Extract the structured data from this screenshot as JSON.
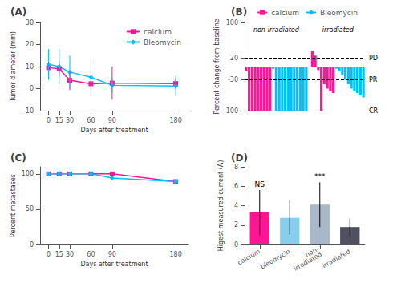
{
  "chart_data": [
    {
      "type": "line",
      "title": "(A)",
      "xlabel": "Days after treatment",
      "ylabel": "Tumor diameter (mm)",
      "x": [
        0,
        15,
        30,
        60,
        90,
        180
      ],
      "xlim": [
        -12,
        198
      ],
      "xticks": [
        0,
        15,
        30,
        60,
        90,
        180
      ],
      "ylim": [
        -10,
        30
      ],
      "yticks": [
        -10,
        0,
        10,
        20,
        30
      ],
      "legend": "upper right",
      "grid": false,
      "series": [
        {
          "name": "calcium",
          "color": "#FF1493",
          "marker": "square",
          "values": [
            9.5,
            9.0,
            3.8,
            2.2,
            2.5,
            2.3
          ],
          "errors": [
            2.5,
            3.5,
            4.5,
            2.5,
            7.5,
            2.5
          ]
        },
        {
          "name": "Bleomycin",
          "color": "#00BFFF",
          "marker": "diamond",
          "values": [
            11.0,
            10.0,
            7.5,
            5.2,
            1.5,
            1.2
          ],
          "errors": [
            7.0,
            8.0,
            7.5,
            7.5,
            3.5,
            4.5
          ]
        }
      ]
    },
    {
      "type": "bar",
      "title": "(B)",
      "ylabel": "Percent change from baseline",
      "ylim": [
        -100,
        100
      ],
      "yticks": [
        -100,
        -30,
        20,
        100
      ],
      "tick_labels": "y",
      "legend": "upper right",
      "grid": false,
      "groups": [
        {
          "label": "non-irradiated",
          "series": [
            {
              "name": "calcium",
              "color": "#FF1493",
              "values": [
                -10,
                -100,
                -100,
                -100,
                -100,
                -100,
                -100,
                -100,
                -100
              ]
            },
            {
              "name": "Bleomycin",
              "color": "#00BFFF",
              "values": [
                -5,
                -100,
                -100,
                -100,
                -100,
                -100,
                -100,
                -100,
                -100,
                -100,
                -100,
                -100
              ]
            }
          ]
        },
        {
          "label": "irradiated",
          "series": [
            {
              "name": "calcium",
              "color": "#FF1493",
              "values": [
                35,
                25,
                -8,
                -100,
                -40,
                -50,
                -55,
                -60
              ]
            },
            {
              "name": "Bleomycin",
              "color": "#00BFFF",
              "values": [
                -5,
                -10,
                -20,
                -30,
                -40,
                -50,
                -55,
                -60,
                -65,
                -70
              ]
            }
          ]
        }
      ],
      "reference_lines": [
        {
          "y": 20,
          "line_style": "dashed"
        },
        {
          "y": -30,
          "line_style": "dashed"
        },
        {
          "y": 0,
          "line_style": "solid"
        }
      ],
      "annotations": [
        {
          "text": "PD",
          "y": 20
        },
        {
          "text": "PR",
          "y": -30
        },
        {
          "text": "CR",
          "y": -100
        }
      ]
    },
    {
      "type": "line",
      "title": "(C)",
      "xlabel": "Days after treatment",
      "ylabel": "Percent metastases",
      "x": [
        0,
        15,
        30,
        60,
        90,
        180
      ],
      "xlim": [
        -12,
        198
      ],
      "xticks": [
        0,
        15,
        30,
        60,
        90,
        180
      ],
      "ylim": [
        0,
        110
      ],
      "yticks": [
        0,
        50,
        100
      ],
      "grid": false,
      "series": [
        {
          "name": "calcium",
          "color": "#FF1493",
          "marker": "square",
          "values": [
            100,
            100,
            100,
            100,
            100,
            89
          ]
        },
        {
          "name": "Bleomycin",
          "color": "#00BFFF",
          "marker": "diamond",
          "values": [
            100,
            100,
            100,
            100,
            94,
            89
          ]
        }
      ]
    },
    {
      "type": "bar",
      "title": "(D)",
      "ylabel": "Higest measured current (A)",
      "categories": [
        "calcium",
        "bleomycin",
        "non-\nirradiated",
        "irradiated"
      ],
      "values": [
        3.3,
        2.75,
        4.1,
        1.8
      ],
      "errors": [
        2.3,
        1.75,
        2.3,
        0.9
      ],
      "colors": [
        "#FF1493",
        "#87CEEB",
        "#A8B8C8",
        "#505060"
      ],
      "ylim": [
        0,
        8
      ],
      "yticks": [
        0,
        2,
        4,
        6,
        8
      ],
      "grid": false,
      "annotations": [
        {
          "text": "NS",
          "category": "calcium"
        },
        {
          "text": "***",
          "category": "non-\nirradiated"
        }
      ]
    }
  ]
}
